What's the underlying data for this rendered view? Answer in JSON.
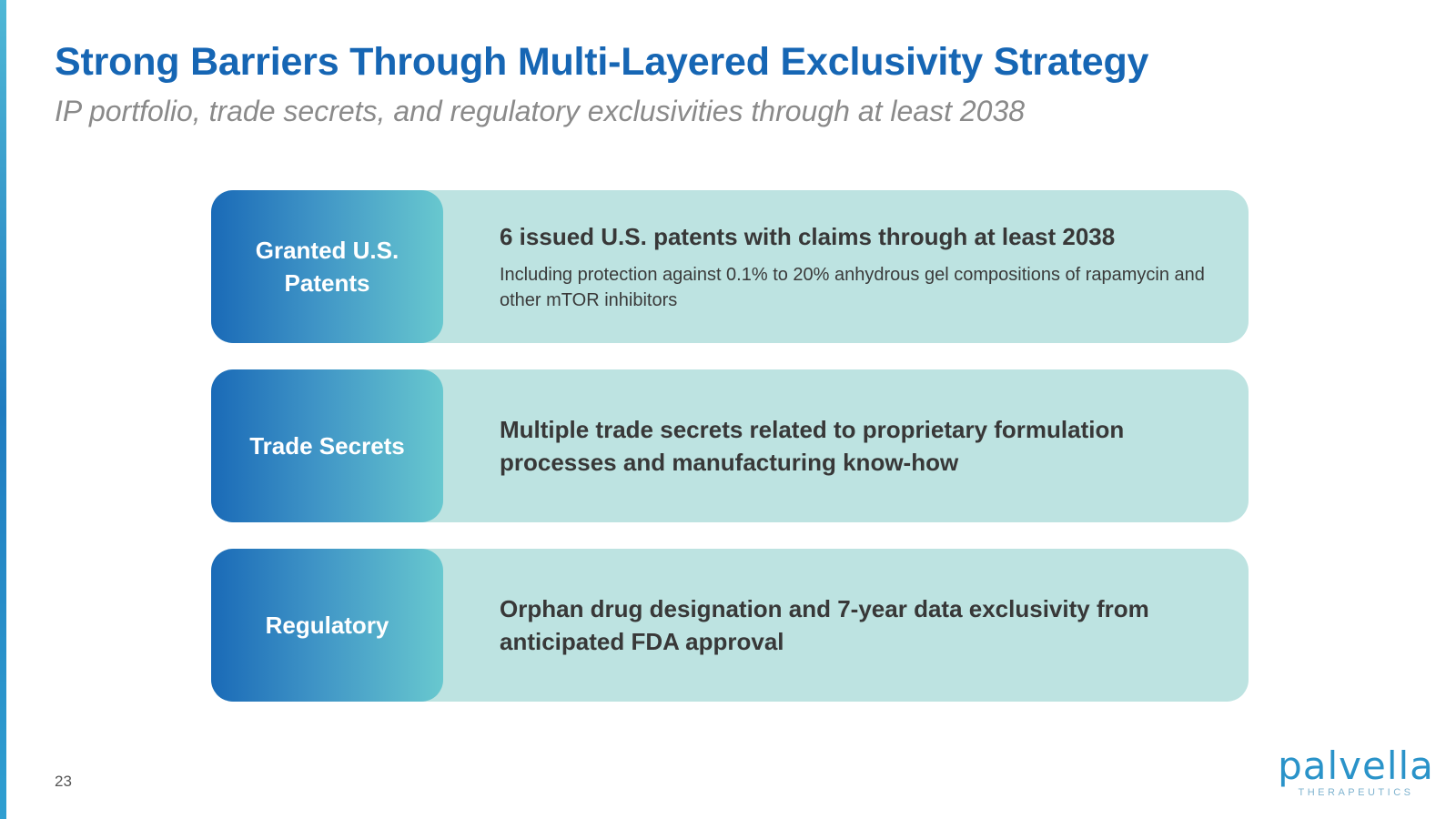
{
  "slide": {
    "title": "Strong Barriers Through Multi-Layered Exclusivity Strategy",
    "subtitle": "IP portfolio, trade secrets, and regulatory exclusivities through at least 2038",
    "page_number": "23"
  },
  "rows": [
    {
      "label": "Granted U.S. Patents",
      "headline": "6 issued U.S. patents with claims through at least 2038",
      "detail": "Including protection against 0.1% to 20% anhydrous gel compositions of rapamycin and other mTOR inhibitors"
    },
    {
      "label": "Trade Secrets",
      "headline": "Multiple trade secrets related to proprietary formulation processes and manufacturing know-how"
    },
    {
      "label": "Regulatory",
      "headline": "Orphan drug designation and 7-year data exclusivity from anticipated FDA approval"
    }
  ],
  "logo": {
    "word": "palvella",
    "sub": "THERAPEUTICS"
  },
  "colors": {
    "title": "#1666b4",
    "row_background": "#bde3e1",
    "label_gradient_start": "#1a6ab7",
    "label_gradient_end": "#68c8cf",
    "logo": "#2a93c9"
  }
}
